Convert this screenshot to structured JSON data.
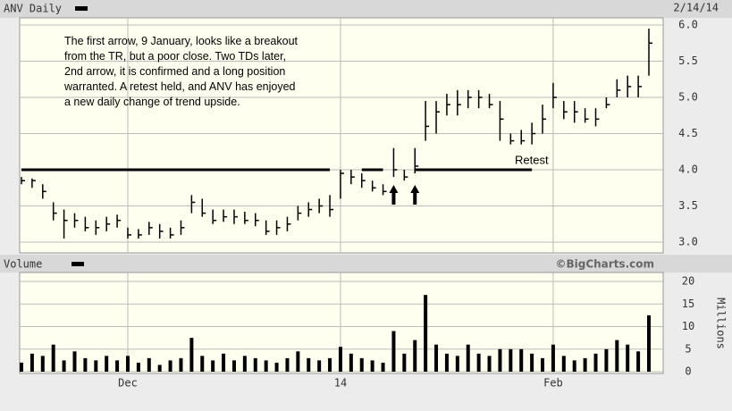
{
  "header": {
    "title": "ANV Daily",
    "date": "2/14/14"
  },
  "chart_data": [
    {
      "type": "ohlc",
      "annotation": [
        "The first arrow, 9 January, looks like a breakout",
        "from the TR, but a poor close.  Two TDs later,",
        "2nd arrow, it is confirmed and a long position",
        "warranted.  A retest held, and ANV has enjoyed",
        "a new daily change of trend upside."
      ],
      "retest_label": "Retest",
      "reference_lines": [
        {
          "y": 4,
          "x": [
            0,
            29
          ]
        },
        {
          "y": 4,
          "x": [
            32,
            34
          ]
        },
        {
          "y": 4,
          "x": [
            37,
            48
          ]
        }
      ],
      "arrows": [
        35,
        37
      ],
      "categories": [
        null,
        null,
        null,
        null,
        null,
        null,
        null,
        null,
        null,
        null,
        "Dec",
        null,
        null,
        null,
        null,
        null,
        null,
        null,
        null,
        null,
        null,
        null,
        null,
        null,
        null,
        null,
        null,
        null,
        null,
        null,
        "14",
        null,
        null,
        null,
        null,
        null,
        null,
        null,
        null,
        null,
        null,
        null,
        null,
        null,
        null,
        null,
        null,
        null,
        null,
        null,
        "Feb",
        null,
        null,
        null,
        null,
        null,
        null,
        null,
        null,
        null
      ],
      "high": [
        3.9,
        3.88,
        3.8,
        3.55,
        3.45,
        3.4,
        3.35,
        3.3,
        3.35,
        3.38,
        3.2,
        3.18,
        3.28,
        3.25,
        3.2,
        3.3,
        3.65,
        3.6,
        3.45,
        3.45,
        3.45,
        3.42,
        3.4,
        3.3,
        3.3,
        3.35,
        3.5,
        3.55,
        3.6,
        3.65,
        4.0,
        4.0,
        3.95,
        3.85,
        3.8,
        4.3,
        4.0,
        4.3,
        4.95,
        4.95,
        5.05,
        5.1,
        5.1,
        5.1,
        5.05,
        4.95,
        4.5,
        4.55,
        4.65,
        4.9,
        5.2,
        4.95,
        4.95,
        4.85,
        4.85,
        5.0,
        5.25,
        5.3,
        5.3,
        5.95
      ],
      "low": [
        3.8,
        3.75,
        3.6,
        3.3,
        3.05,
        3.2,
        3.15,
        3.1,
        3.15,
        3.2,
        3.05,
        3.05,
        3.1,
        3.05,
        3.05,
        3.1,
        3.4,
        3.35,
        3.25,
        3.28,
        3.25,
        3.25,
        3.22,
        3.1,
        3.1,
        3.15,
        3.3,
        3.35,
        3.4,
        3.35,
        3.6,
        3.8,
        3.75,
        3.7,
        3.65,
        3.9,
        3.85,
        3.95,
        4.4,
        4.5,
        4.75,
        4.75,
        4.85,
        4.85,
        4.85,
        4.4,
        4.35,
        4.35,
        4.35,
        4.5,
        4.85,
        4.7,
        4.65,
        4.65,
        4.6,
        4.85,
        5.0,
        5.0,
        5.0,
        5.3
      ],
      "close": [
        3.85,
        3.85,
        3.7,
        3.4,
        3.3,
        3.3,
        3.2,
        3.2,
        3.25,
        3.3,
        3.1,
        3.1,
        3.2,
        3.15,
        3.1,
        3.2,
        3.55,
        3.4,
        3.3,
        3.35,
        3.35,
        3.3,
        3.3,
        3.15,
        3.2,
        3.25,
        3.4,
        3.45,
        3.5,
        3.45,
        3.95,
        3.9,
        3.85,
        3.75,
        3.7,
        4.0,
        3.9,
        4.05,
        4.6,
        4.8,
        4.9,
        4.9,
        5.0,
        5.0,
        4.9,
        4.7,
        4.4,
        4.4,
        4.5,
        4.7,
        5.0,
        4.8,
        4.8,
        4.7,
        4.7,
        4.9,
        5.1,
        5.15,
        5.15,
        5.75
      ],
      "color": "#000000",
      "ylim": [
        3,
        6
      ],
      "yticks": [
        {
          "value": 3,
          "label": "3.0"
        },
        {
          "value": 3.5,
          "label": "3.5"
        },
        {
          "value": 4,
          "label": "4.0"
        },
        {
          "value": 4.5,
          "label": "4.5"
        },
        {
          "value": 5,
          "label": "5.0"
        },
        {
          "value": 5.5,
          "label": "5.5"
        },
        {
          "value": 6,
          "label": "6.0"
        }
      ],
      "grid": true
    },
    {
      "type": "bar",
      "title": "Volume",
      "source": "©BigCharts.com",
      "ylabel": "Millions",
      "values": [
        2,
        4,
        3.5,
        6,
        2.5,
        4.5,
        3,
        2.5,
        3.5,
        2.5,
        3.5,
        2,
        3,
        1.5,
        2.5,
        3,
        7.5,
        3.5,
        2.5,
        4,
        2.5,
        3.5,
        3,
        2.5,
        2,
        3,
        4.5,
        3,
        2.5,
        3,
        5.5,
        4,
        3,
        2.5,
        2,
        9,
        4,
        7,
        17,
        6,
        4,
        3.5,
        6,
        4,
        3.5,
        5,
        5,
        5,
        4,
        3,
        6,
        3.5,
        2.5,
        3,
        4,
        5,
        7,
        6,
        4.5,
        12.5
      ],
      "color": "#000000",
      "ylim": [
        0,
        20
      ],
      "yticks": [
        0,
        5,
        10,
        15,
        20
      ],
      "grid": true
    }
  ]
}
